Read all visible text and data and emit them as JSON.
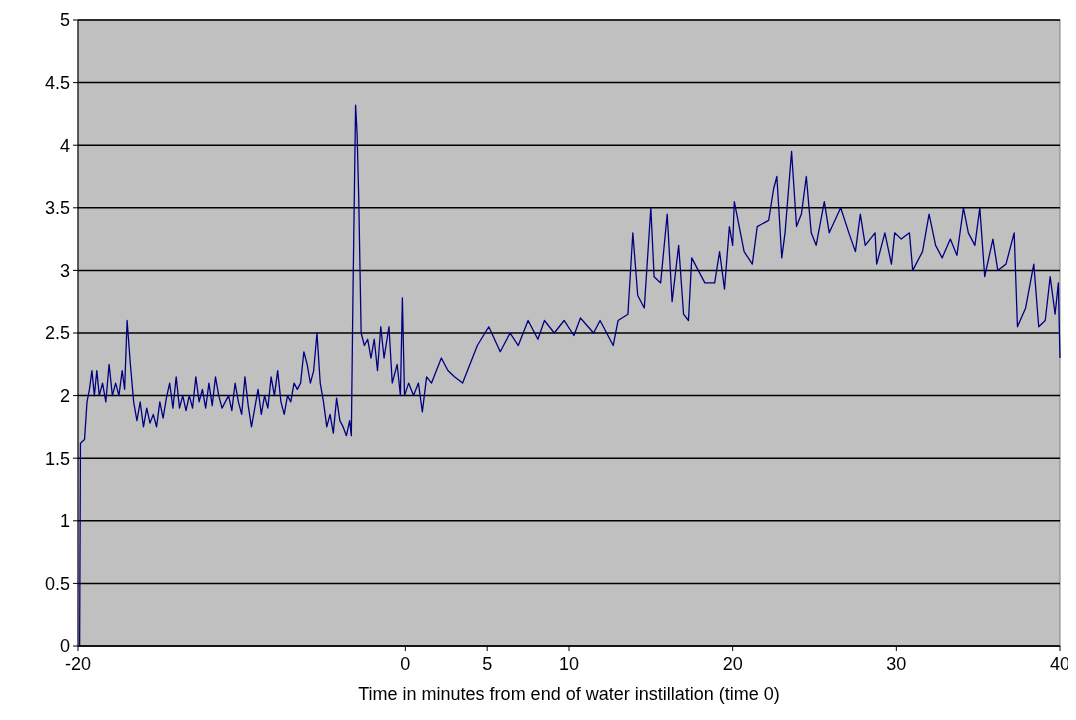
{
  "chart_data": {
    "type": "line",
    "xlabel": "Time in minutes from end of water instillation (time 0)",
    "x": [
      -19.9,
      -19.85,
      -19.6,
      -19.45,
      -19.3,
      -19.15,
      -19.0,
      -18.85,
      -18.7,
      -18.5,
      -18.3,
      -18.1,
      -17.9,
      -17.7,
      -17.5,
      -17.3,
      -17.15,
      -17.0,
      -16.8,
      -16.6,
      -16.4,
      -16.2,
      -16.0,
      -15.8,
      -15.6,
      -15.4,
      -15.2,
      -15.0,
      -14.8,
      -14.6,
      -14.4,
      -14.2,
      -14.0,
      -13.8,
      -13.6,
      -13.4,
      -13.2,
      -13.0,
      -12.8,
      -12.6,
      -12.4,
      -12.2,
      -12.0,
      -11.8,
      -11.6,
      -11.4,
      -11.2,
      -11.0,
      -10.8,
      -10.6,
      -10.4,
      -10.2,
      -10.0,
      -9.8,
      -9.6,
      -9.4,
      -9.2,
      -9.0,
      -8.8,
      -8.6,
      -8.4,
      -8.2,
      -8.0,
      -7.8,
      -7.6,
      -7.4,
      -7.2,
      -7.0,
      -6.8,
      -6.6,
      -6.4,
      -6.2,
      -6.0,
      -5.8,
      -5.6,
      -5.4,
      -5.2,
      -5.0,
      -4.8,
      -4.6,
      -4.4,
      -4.2,
      -4.0,
      -3.8,
      -3.6,
      -3.4,
      -3.3,
      -3.2,
      -3.04,
      -2.95,
      -2.85,
      -2.7,
      -2.5,
      -2.3,
      -2.1,
      -1.9,
      -1.7,
      -1.5,
      -1.3,
      -1.0,
      -0.8,
      -0.5,
      -0.3,
      -0.18,
      -0.05,
      0.2,
      0.5,
      0.8,
      1.04,
      1.3,
      1.6,
      1.9,
      2.2,
      2.6,
      3.0,
      3.5,
      3.8,
      4.4,
      5.1,
      5.8,
      6.4,
      6.9,
      7.5,
      8.1,
      8.5,
      9.1,
      9.7,
      10.3,
      10.7,
      11.5,
      11.9,
      12.7,
      13.0,
      13.6,
      13.9,
      14.2,
      14.6,
      15.0,
      15.2,
      15.6,
      16.0,
      16.3,
      16.7,
      17.0,
      17.3,
      17.5,
      18.3,
      18.9,
      19.2,
      19.5,
      19.8,
      20.0,
      20.1,
      20.7,
      21.2,
      21.5,
      22.2,
      22.5,
      22.7,
      23.0,
      23.2,
      23.6,
      23.9,
      24.2,
      24.5,
      24.8,
      25.1,
      25.6,
      25.9,
      26.6,
      27.1,
      27.5,
      27.8,
      28.1,
      28.7,
      28.8,
      29.3,
      29.7,
      29.9,
      30.3,
      30.8,
      31.0,
      31.6,
      32.0,
      32.4,
      32.8,
      33.3,
      33.7,
      34.1,
      34.4,
      34.8,
      35.1,
      35.4,
      35.9,
      36.2,
      36.7,
      37.2,
      37.4,
      37.9,
      38.4,
      38.7,
      39.1,
      39.4,
      39.7,
      39.9,
      40.0
    ],
    "series": [
      {
        "color": "#000080",
        "values": [
          0,
          1.62,
          1.65,
          1.95,
          2.05,
          2.2,
          2.0,
          2.2,
          2.0,
          2.1,
          1.95,
          2.25,
          2.0,
          2.1,
          2.0,
          2.2,
          2.05,
          2.6,
          2.25,
          1.95,
          1.8,
          1.95,
          1.75,
          1.9,
          1.78,
          1.85,
          1.75,
          1.95,
          1.82,
          1.98,
          2.1,
          1.9,
          2.15,
          1.9,
          2.0,
          1.88,
          2.0,
          1.9,
          2.15,
          1.95,
          2.05,
          1.9,
          2.1,
          1.92,
          2.15,
          2.0,
          1.9,
          1.95,
          2.0,
          1.88,
          2.1,
          1.95,
          1.85,
          2.15,
          1.92,
          1.75,
          1.9,
          2.05,
          1.85,
          2.0,
          1.9,
          2.15,
          2.0,
          2.2,
          1.95,
          1.85,
          2.0,
          1.95,
          2.1,
          2.05,
          2.1,
          2.35,
          2.25,
          2.1,
          2.2,
          2.5,
          2.1,
          1.95,
          1.75,
          1.85,
          1.7,
          1.98,
          1.8,
          1.75,
          1.68,
          1.8,
          1.68,
          2.8,
          4.32,
          4.1,
          3.6,
          2.5,
          2.4,
          2.45,
          2.3,
          2.45,
          2.2,
          2.55,
          2.3,
          2.55,
          2.1,
          2.25,
          2.0,
          2.78,
          2.0,
          2.1,
          2.0,
          2.1,
          1.87,
          2.15,
          2.1,
          2.2,
          2.3,
          2.2,
          2.15,
          2.1,
          2.2,
          2.4,
          2.55,
          2.35,
          2.5,
          2.4,
          2.6,
          2.45,
          2.6,
          2.5,
          2.6,
          2.48,
          2.62,
          2.5,
          2.6,
          2.4,
          2.6,
          2.65,
          3.3,
          2.8,
          2.7,
          3.5,
          2.95,
          2.9,
          3.45,
          2.75,
          3.2,
          2.65,
          2.6,
          3.1,
          2.9,
          2.9,
          3.15,
          2.85,
          3.35,
          3.2,
          3.55,
          3.15,
          3.05,
          3.35,
          3.4,
          3.65,
          3.75,
          3.1,
          3.3,
          3.95,
          3.35,
          3.45,
          3.75,
          3.3,
          3.2,
          3.55,
          3.3,
          3.5,
          3.3,
          3.15,
          3.45,
          3.2,
          3.3,
          3.05,
          3.3,
          3.05,
          3.3,
          3.25,
          3.3,
          3.0,
          3.15,
          3.45,
          3.2,
          3.1,
          3.25,
          3.12,
          3.5,
          3.3,
          3.2,
          3.5,
          2.95,
          3.25,
          3.0,
          3.05,
          3.3,
          2.55,
          2.7,
          3.05,
          2.55,
          2.6,
          2.95,
          2.65,
          2.9,
          2.3
        ]
      }
    ],
    "xlim": [
      -20,
      40
    ],
    "xticks": [
      -20,
      0,
      5,
      10,
      20,
      30,
      40
    ],
    "ylim": [
      0,
      5
    ],
    "yticks": [
      0,
      0.5,
      1,
      1.5,
      2,
      2.5,
      3,
      3.5,
      4,
      4.5,
      5
    ],
    "grid": "y"
  }
}
